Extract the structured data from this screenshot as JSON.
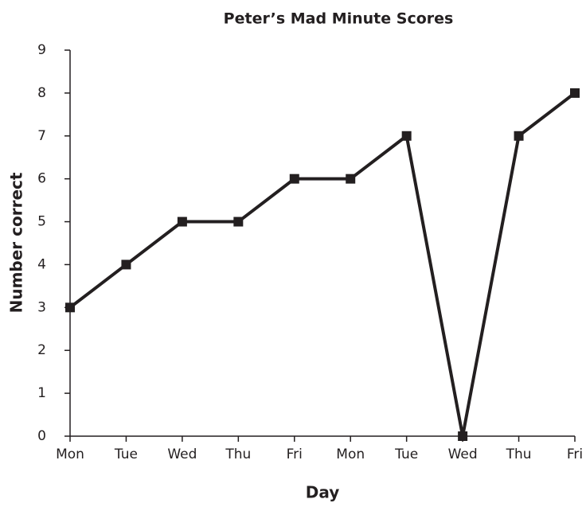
{
  "chart_data": {
    "type": "line",
    "title": "Peter’s Mad Minute Scores",
    "x_label": "Day",
    "y_label": "Number correct",
    "categories": [
      "Mon",
      "Tue",
      "Wed",
      "Thu",
      "Fri",
      "Mon",
      "Tue",
      "Wed",
      "Thu",
      "Fri"
    ],
    "values": [
      3,
      4,
      5,
      5,
      6,
      6,
      7,
      0,
      7,
      8
    ],
    "color": "#231f20",
    "ylim": [
      0,
      9
    ],
    "yticks": [
      0,
      1,
      2,
      3,
      4,
      5,
      6,
      7,
      8,
      9
    ],
    "grid": false
  }
}
